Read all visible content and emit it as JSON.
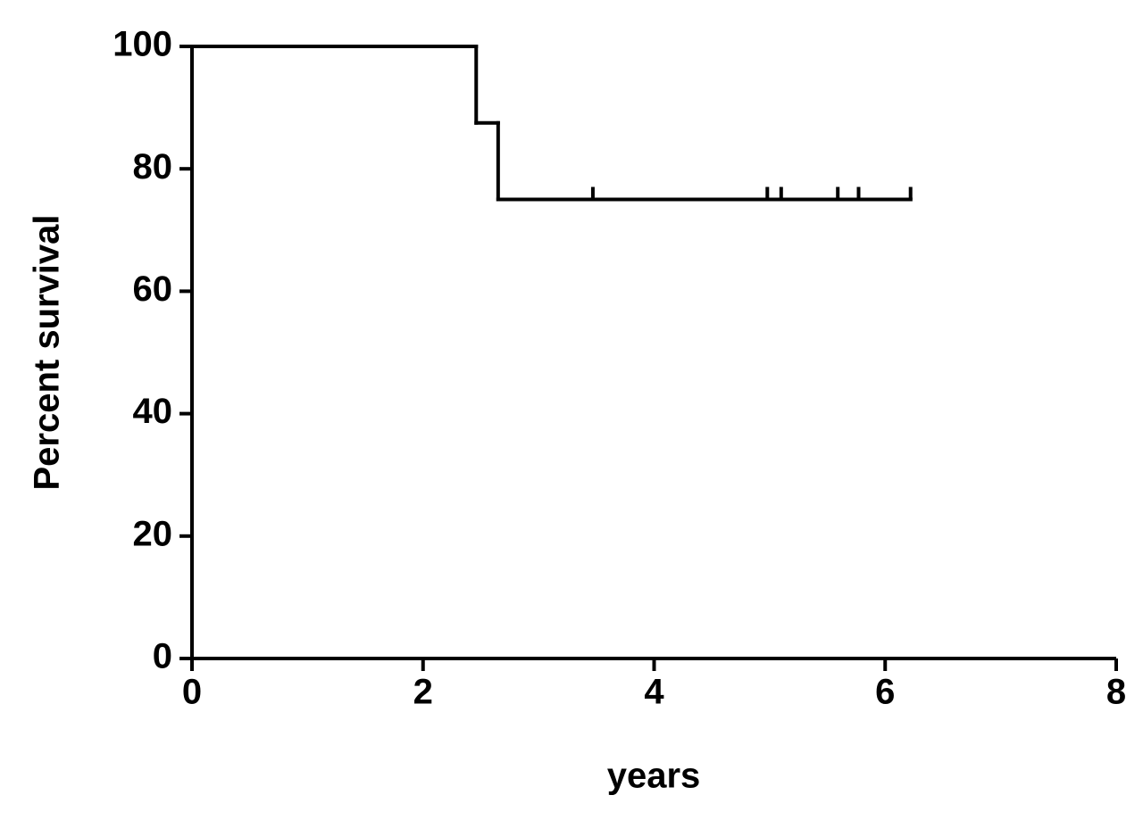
{
  "chart_data": {
    "type": "step",
    "x_label": "years",
    "y_label": "Percent survival",
    "x": [
      0,
      2.46,
      2.65,
      6.22
    ],
    "values": [
      100,
      87.5,
      75,
      75
    ],
    "color": "#000000",
    "censored": {
      "x": [
        3.47,
        4.98,
        5.1,
        5.59,
        5.77,
        6.22
      ],
      "values": [
        75,
        75,
        75,
        75,
        75,
        75
      ]
    },
    "xlim": [
      0,
      8
    ],
    "xticks": [
      0,
      2,
      4,
      6,
      8
    ],
    "ylim": [
      0,
      100
    ],
    "yticks": [
      0,
      20,
      40,
      60,
      80,
      100
    ]
  }
}
